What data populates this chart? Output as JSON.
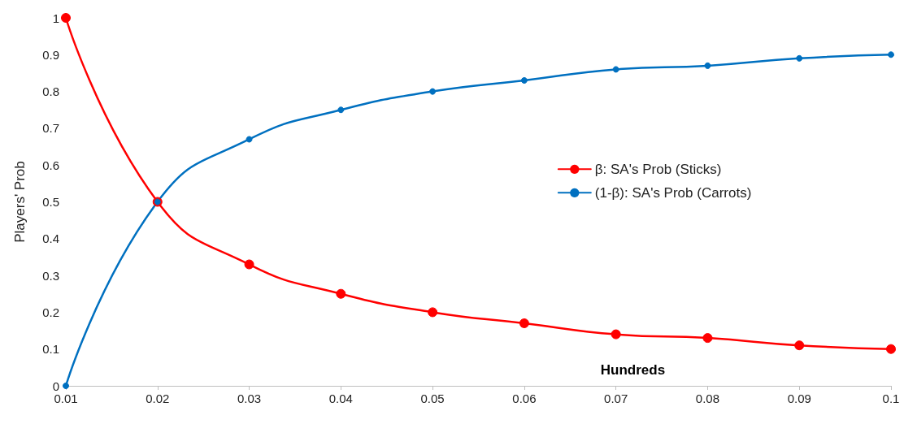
{
  "chart_data": {
    "type": "line",
    "xlabel": "Hundreds",
    "ylabel": "Players' Prob",
    "x": [
      0.01,
      0.02,
      0.03,
      0.04,
      0.05,
      0.06,
      0.07,
      0.08,
      0.09,
      0.1
    ],
    "series": [
      {
        "name": "β: SA's Prob (Sticks)",
        "color": "#ff0000",
        "values": [
          1,
          0.5,
          0.33,
          0.25,
          0.2,
          0.17,
          0.14,
          0.13,
          0.11,
          0.1
        ]
      },
      {
        "name": "(1-β): SA's Prob (Carrots)",
        "color": "#0070c0",
        "values": [
          0,
          0.5,
          0.67,
          0.75,
          0.8,
          0.83,
          0.86,
          0.87,
          0.89,
          0.9
        ]
      }
    ],
    "xlim": [
      0.01,
      0.1
    ],
    "xticks": [
      0.01,
      0.02,
      0.03,
      0.04,
      0.05,
      0.06,
      0.07,
      0.08,
      0.09,
      0.1
    ],
    "ylim": [
      0,
      1
    ],
    "yticks": [
      0,
      0.1,
      0.2,
      0.3,
      0.4,
      0.5,
      0.6,
      0.7,
      0.8,
      0.9,
      1
    ],
    "grid": false,
    "legend": "right",
    "marker": "circle",
    "line_style": "solid"
  }
}
